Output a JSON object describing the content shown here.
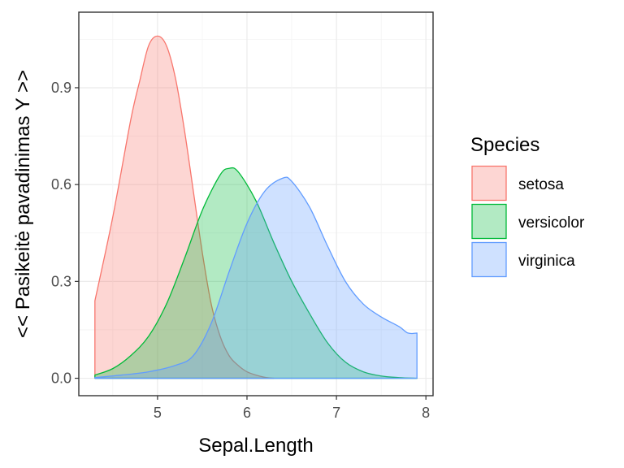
{
  "chart_data": {
    "type": "area",
    "subtype": "density",
    "title": "",
    "xlabel": "Sepal.Length",
    "ylabel": "<< Pasikeitė pavadinimas Y >>",
    "xlim": [
      4.3,
      7.9
    ],
    "ylim": [
      0,
      1.08
    ],
    "xticks": [
      5,
      6,
      7,
      8
    ],
    "xtick_labels": [
      "5",
      "6",
      "7",
      "8"
    ],
    "yticks": [
      0,
      0.3,
      0.6,
      0.9
    ],
    "ytick_labels": [
      "0.0",
      "0.3",
      "0.6",
      "0.9"
    ],
    "grid": true,
    "legend": {
      "title": "Species",
      "position": "right"
    },
    "series": [
      {
        "name": "setosa",
        "color": "#F8766D",
        "fill": "#F8766D",
        "x": [
          4.3,
          4.5,
          4.7,
          4.8,
          4.9,
          5.0,
          5.1,
          5.2,
          5.3,
          5.4,
          5.5,
          5.6,
          5.7,
          5.8,
          5.9,
          6.0,
          6.1,
          6.2,
          6.3
        ],
        "y": [
          0.24,
          0.5,
          0.8,
          0.92,
          1.03,
          1.06,
          1.03,
          0.93,
          0.77,
          0.58,
          0.39,
          0.23,
          0.13,
          0.07,
          0.04,
          0.02,
          0.01,
          0.003,
          0.0
        ]
      },
      {
        "name": "versicolor",
        "color": "#00BA38",
        "fill": "#00BA38",
        "x": [
          4.3,
          4.5,
          4.7,
          4.9,
          5.1,
          5.3,
          5.5,
          5.7,
          5.8,
          5.9,
          6.1,
          6.3,
          6.5,
          6.7,
          6.9,
          7.1,
          7.3,
          7.5,
          7.7,
          7.9
        ],
        "y": [
          0.01,
          0.03,
          0.07,
          0.13,
          0.23,
          0.37,
          0.52,
          0.63,
          0.65,
          0.64,
          0.55,
          0.42,
          0.3,
          0.2,
          0.11,
          0.05,
          0.02,
          0.007,
          0.002,
          0.0
        ]
      },
      {
        "name": "virginica",
        "color": "#619CFF",
        "fill": "#619CFF",
        "x": [
          4.3,
          4.6,
          4.9,
          5.2,
          5.4,
          5.6,
          5.8,
          6.0,
          6.2,
          6.4,
          6.5,
          6.7,
          6.9,
          7.1,
          7.3,
          7.5,
          7.7,
          7.8,
          7.9
        ],
        "y": [
          0.002,
          0.01,
          0.02,
          0.04,
          0.07,
          0.17,
          0.33,
          0.48,
          0.58,
          0.62,
          0.61,
          0.53,
          0.41,
          0.3,
          0.23,
          0.19,
          0.16,
          0.14,
          0.14
        ]
      }
    ]
  }
}
